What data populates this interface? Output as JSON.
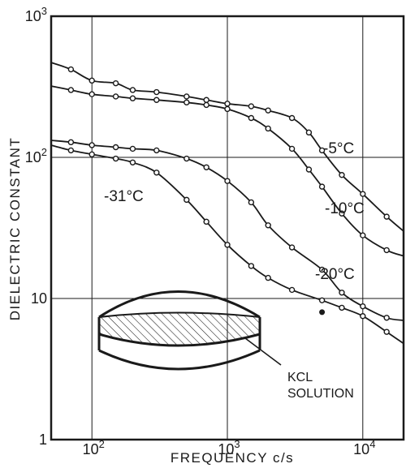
{
  "chart_data": {
    "type": "line",
    "title": "",
    "xlabel": "FREQUENCY c/s",
    "ylabel": "DIELECTRIC CONSTANT",
    "x_scale": "log",
    "y_scale": "log",
    "xlim": [
      50,
      20000
    ],
    "ylim": [
      1,
      1000
    ],
    "x_ticks": [
      {
        "value": 100,
        "base": "10",
        "exp": "2"
      },
      {
        "value": 1000,
        "base": "10",
        "exp": "3"
      },
      {
        "value": 10000,
        "base": "10",
        "exp": "4"
      }
    ],
    "y_ticks": [
      {
        "value": 1,
        "base": "1",
        "exp": ""
      },
      {
        "value": 10,
        "base": "10",
        "exp": ""
      },
      {
        "value": 100,
        "base": "10",
        "exp": "2"
      },
      {
        "value": 1000,
        "base": "10",
        "exp": "3"
      }
    ],
    "grid": true,
    "series": [
      {
        "name": "-5°C",
        "points": [
          [
            50,
            470
          ],
          [
            70,
            420
          ],
          [
            100,
            350
          ],
          [
            150,
            335
          ],
          [
            200,
            300
          ],
          [
            300,
            290
          ],
          [
            500,
            270
          ],
          [
            700,
            255
          ],
          [
            1000,
            240
          ],
          [
            1500,
            230
          ],
          [
            2000,
            215
          ],
          [
            3000,
            190
          ],
          [
            4000,
            150
          ],
          [
            5000,
            112
          ],
          [
            7000,
            75
          ],
          [
            10000,
            55
          ],
          [
            15000,
            38
          ],
          [
            20000,
            30
          ]
        ]
      },
      {
        "name": "-10°C",
        "points": [
          [
            50,
            320
          ],
          [
            70,
            300
          ],
          [
            100,
            280
          ],
          [
            150,
            270
          ],
          [
            200,
            262
          ],
          [
            300,
            255
          ],
          [
            500,
            245
          ],
          [
            700,
            235
          ],
          [
            1000,
            220
          ],
          [
            1500,
            190
          ],
          [
            2000,
            160
          ],
          [
            3000,
            115
          ],
          [
            4000,
            82
          ],
          [
            5000,
            62
          ],
          [
            7000,
            40
          ],
          [
            10000,
            28
          ],
          [
            15000,
            22
          ],
          [
            20000,
            20
          ]
        ]
      },
      {
        "name": "-20°C",
        "points": [
          [
            50,
            132
          ],
          [
            70,
            128
          ],
          [
            100,
            122
          ],
          [
            150,
            118
          ],
          [
            200,
            115
          ],
          [
            300,
            112
          ],
          [
            500,
            98
          ],
          [
            700,
            85
          ],
          [
            1000,
            68
          ],
          [
            1500,
            48
          ],
          [
            2000,
            33
          ],
          [
            3000,
            23
          ],
          [
            5000,
            16
          ],
          [
            7000,
            11
          ],
          [
            10000,
            8.8
          ],
          [
            15000,
            7.3
          ],
          [
            20000,
            7
          ]
        ]
      },
      {
        "name": "-31°C",
        "points": [
          [
            50,
            122
          ],
          [
            70,
            112
          ],
          [
            100,
            105
          ],
          [
            150,
            98
          ],
          [
            200,
            92
          ],
          [
            300,
            78
          ],
          [
            500,
            50
          ],
          [
            700,
            35
          ],
          [
            1000,
            24
          ],
          [
            1500,
            17
          ],
          [
            2000,
            14
          ],
          [
            3000,
            11.5
          ],
          [
            5000,
            9.7
          ],
          [
            7000,
            8.6
          ],
          [
            10000,
            7.5
          ],
          [
            15000,
            5.8
          ],
          [
            20000,
            4.8
          ]
        ]
      }
    ],
    "extra_points": [
      [
        5000,
        8
      ]
    ],
    "curve_labels": [
      {
        "series": "-5°C",
        "text": "-5°C"
      },
      {
        "series": "-10°C",
        "text": "-10°C"
      },
      {
        "series": "-20°C",
        "text": "-20°C"
      },
      {
        "series": "-31°C",
        "text": "-31°C"
      }
    ],
    "inset_annotation": [
      "KCL",
      "SOLUTION"
    ]
  }
}
